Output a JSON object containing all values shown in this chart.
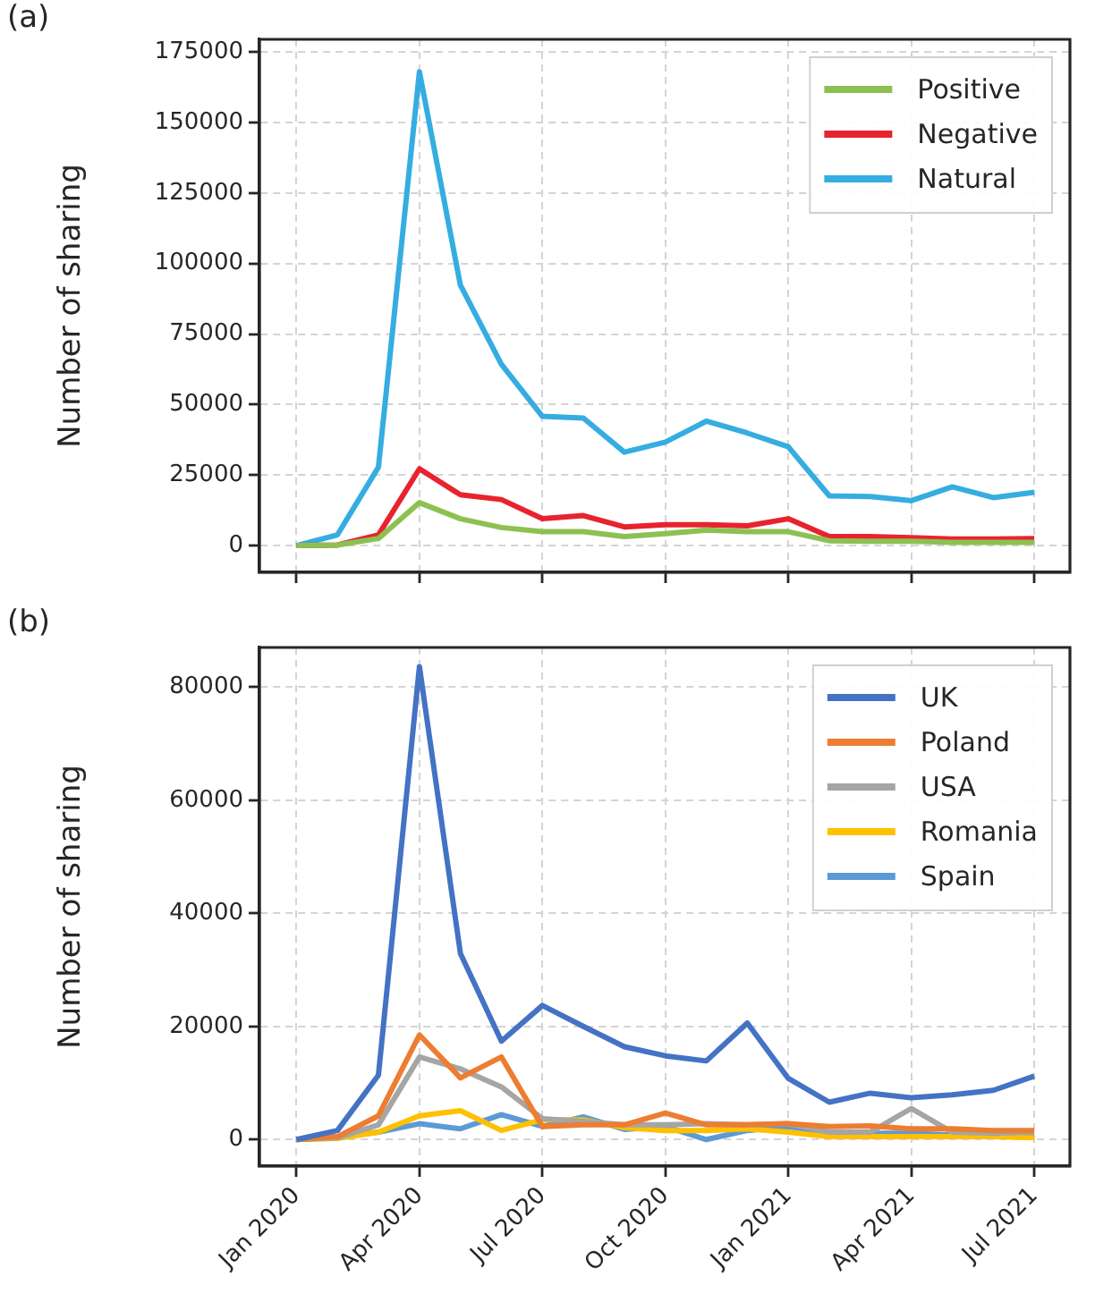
{
  "chart_data": [
    {
      "type": "line",
      "annotations": [
        "(a)"
      ],
      "ylabel": "Number of sharing",
      "legend": "top right",
      "grid": true,
      "tick_labels": "y",
      "x": [
        "2020-01",
        "2020-02",
        "2020-03",
        "2020-04",
        "2020-05",
        "2020-06",
        "2020-07",
        "2020-08",
        "2020-09",
        "2020-10",
        "2020-11",
        "2020-12",
        "2021-01",
        "2021-02",
        "2021-03",
        "2021-04",
        "2021-05",
        "2021-06",
        "2021-07"
      ],
      "xlim": [
        "2019-12-04",
        "2021-07-28"
      ],
      "xticks": [
        "2020-01",
        "2020-04",
        "2020-07",
        "2020-10",
        "2021-01",
        "2021-04",
        "2021-07"
      ],
      "ylim": [
        -9500,
        179500
      ],
      "yticks": [
        0,
        25000,
        50000,
        75000,
        100000,
        125000,
        150000,
        175000
      ],
      "series": [
        {
          "name": "Positive",
          "color": "#8cc152",
          "values": [
            0,
            200,
            2500,
            15200,
            9500,
            6400,
            4900,
            4900,
            3200,
            4200,
            5500,
            4900,
            4900,
            1700,
            1500,
            1500,
            1100,
            1100,
            1100
          ]
        },
        {
          "name": "Negative",
          "color": "#e8232e",
          "values": [
            0,
            200,
            3800,
            27200,
            18000,
            16300,
            9500,
            10600,
            6600,
            7400,
            7400,
            7000,
            9500,
            3200,
            3200,
            2800,
            2300,
            2300,
            2500
          ]
        },
        {
          "name": "Natural",
          "color": "#35ade0",
          "values": [
            0,
            3800,
            27800,
            168000,
            92300,
            64300,
            45800,
            45200,
            33100,
            36700,
            44100,
            39900,
            35000,
            17600,
            17400,
            15900,
            20800,
            17000,
            18900
          ]
        }
      ]
    },
    {
      "type": "line",
      "annotations": [
        "(b)"
      ],
      "ylabel": "Number of sharing",
      "legend": "top right",
      "grid": true,
      "x": [
        "2020-01",
        "2020-02",
        "2020-03",
        "2020-04",
        "2020-05",
        "2020-06",
        "2020-07",
        "2020-08",
        "2020-09",
        "2020-10",
        "2020-11",
        "2020-12",
        "2021-01",
        "2021-02",
        "2021-03",
        "2021-04",
        "2021-05",
        "2021-06",
        "2021-07"
      ],
      "xlim": [
        "2019-12-04",
        "2021-07-28"
      ],
      "xticks": [
        {
          "value": "2020-01",
          "label": "Jan 2020"
        },
        {
          "value": "2020-04",
          "label": "Apr 2020"
        },
        {
          "value": "2020-07",
          "label": "Jul 2020"
        },
        {
          "value": "2020-10",
          "label": "Oct 2020"
        },
        {
          "value": "2021-01",
          "label": "Jan 2021"
        },
        {
          "value": "2021-04",
          "label": "Apr 2021"
        },
        {
          "value": "2021-07",
          "label": "Jul 2021"
        }
      ],
      "ylim": [
        -4700,
        87000
      ],
      "yticks": [
        0,
        20000,
        40000,
        60000,
        80000
      ],
      "series": [
        {
          "name": "UK",
          "color": "#4472c4",
          "values": [
            0,
            1600,
            11400,
            83600,
            32900,
            17400,
            23700,
            20000,
            16400,
            14800,
            13900,
            20600,
            10800,
            6600,
            8200,
            7400,
            7900,
            8700,
            11200
          ]
        },
        {
          "name": "Poland",
          "color": "#ed7d31",
          "values": [
            0,
            500,
            4200,
            18500,
            10900,
            14600,
            2300,
            2600,
            2600,
            4700,
            2600,
            2600,
            2800,
            2300,
            2400,
            1900,
            1900,
            1600,
            1600
          ]
        },
        {
          "name": "USA",
          "color": "#a5a5a5",
          "values": [
            0,
            300,
            2600,
            14600,
            12500,
            9300,
            3700,
            3200,
            2600,
            2600,
            2800,
            2600,
            2800,
            1300,
            1300,
            5500,
            1300,
            1100,
            1300
          ]
        },
        {
          "name": "Romania",
          "color": "#ffc000",
          "values": [
            0,
            200,
            1300,
            4200,
            5100,
            1600,
            3500,
            3500,
            2100,
            1600,
            1600,
            1900,
            1300,
            500,
            500,
            500,
            500,
            500,
            300
          ]
        },
        {
          "name": "Spain",
          "color": "#5b9bd5",
          "values": [
            0,
            500,
            1300,
            2800,
            1900,
            4400,
            2300,
            4000,
            1800,
            2300,
            0,
            1600,
            2300,
            1100,
            1100,
            1100,
            800,
            800,
            800
          ]
        }
      ]
    }
  ]
}
